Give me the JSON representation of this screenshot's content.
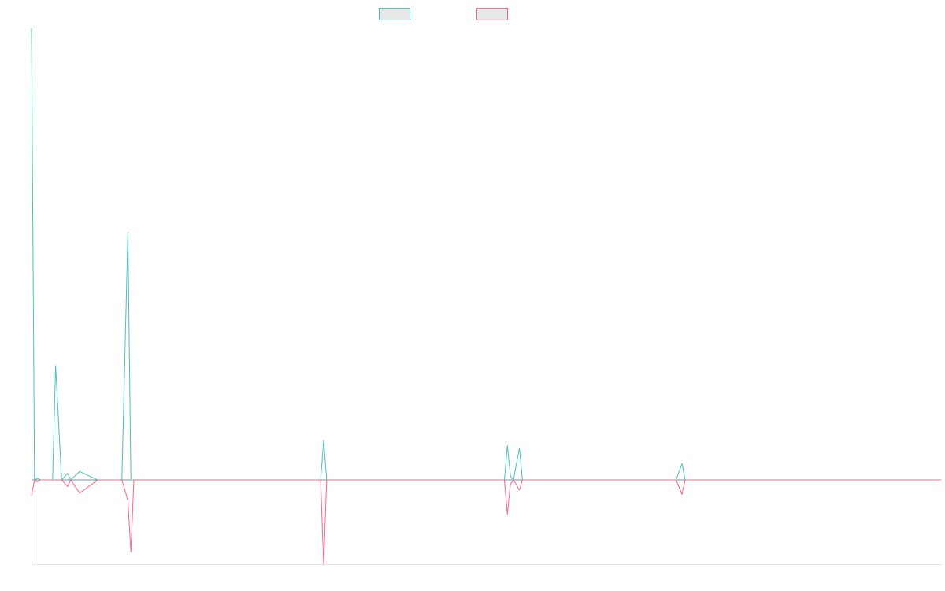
{
  "chart_data": {
    "type": "line",
    "title": "",
    "xlabel": "",
    "ylabel": "",
    "grid": false,
    "legend": "top-center",
    "xlim": [
      0,
      151
    ],
    "ylim": [
      -14,
      75
    ],
    "colors": {
      "teal": "#4bc0c0",
      "pink": "#ff6384",
      "legend_fill": "#e8e8e8",
      "axis": "#e2e2e2",
      "baseline": "#7a8ea8"
    },
    "series": [
      {
        "color": "#4bc0c0",
        "x": [
          0,
          0.5,
          1,
          1.5,
          2,
          3.5,
          4,
          5,
          6,
          6.5,
          8,
          11,
          12,
          15,
          16,
          16.5,
          17,
          17.5,
          48,
          48.5,
          49,
          78.5,
          79,
          79.5,
          80,
          81,
          81.5,
          107,
          108,
          108.5,
          151
        ],
        "values": [
          75,
          0,
          0.3,
          0,
          0,
          0,
          19,
          0,
          1.1,
          0,
          1.4,
          0,
          0,
          0,
          41,
          0,
          0,
          0,
          0,
          6.6,
          0,
          0,
          5.7,
          0.7,
          0,
          5.3,
          0,
          0,
          2.7,
          0,
          0
        ]
      },
      {
        "color": "#ff6384",
        "x": [
          0,
          0.5,
          1,
          1.5,
          2,
          3.5,
          4,
          5,
          6,
          6.5,
          8,
          11,
          12,
          15,
          16,
          16.5,
          17,
          17.5,
          48,
          48.5,
          49,
          78.5,
          79,
          79.5,
          80,
          81,
          81.5,
          107,
          108,
          108.5,
          151
        ],
        "values": [
          -2.6,
          0,
          -0.3,
          0,
          0,
          0,
          0,
          0,
          -1.1,
          0,
          -2.2,
          0,
          0,
          0,
          -3.4,
          -12,
          0,
          0,
          0,
          -14,
          0,
          0,
          -5.7,
          -0.7,
          0,
          -1.7,
          0,
          0,
          -2.4,
          0,
          0
        ]
      }
    ]
  }
}
